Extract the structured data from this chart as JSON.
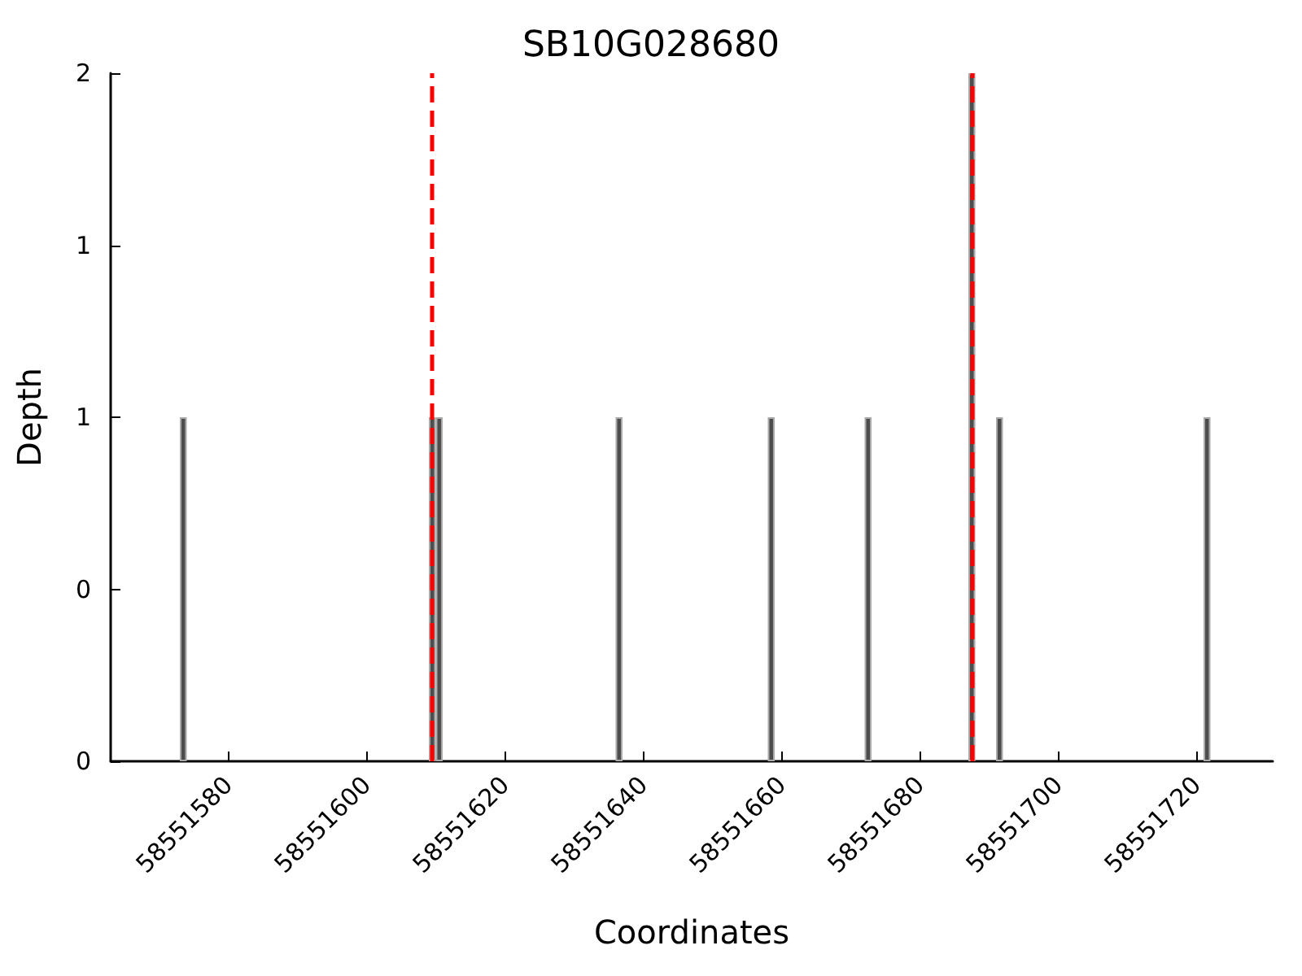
{
  "chart_data": {
    "type": "bar",
    "title": "SB10G028680",
    "xlabel": "Coordinates",
    "ylabel": "Depth",
    "x": [
      58551573.5,
      58551609.5,
      58551610.5,
      58551636.5,
      58551658.5,
      58551672.5,
      58551687.5,
      58551691.5,
      58551721.5
    ],
    "values": [
      1,
      1,
      1,
      1,
      1,
      1,
      2,
      1,
      1
    ],
    "color": "#4d4d4d",
    "xlim": [
      58551563,
      58551731
    ],
    "xticks": [
      58551580,
      58551600,
      58551620,
      58551640,
      58551660,
      58551680,
      58551700,
      58551720
    ],
    "ylim": [
      0,
      2
    ],
    "yticks": [
      0,
      {
        "value": 0.5,
        "label": "0"
      },
      1,
      {
        "value": 1.5,
        "label": "1"
      },
      2
    ],
    "ref_lines": [
      {
        "axis": "x",
        "value": 58551609.5,
        "color": "#ff0000",
        "line_style": "dashed"
      },
      {
        "axis": "x",
        "value": 58551687.5,
        "color": "#ff0000",
        "line_style": "dashed"
      }
    ]
  }
}
